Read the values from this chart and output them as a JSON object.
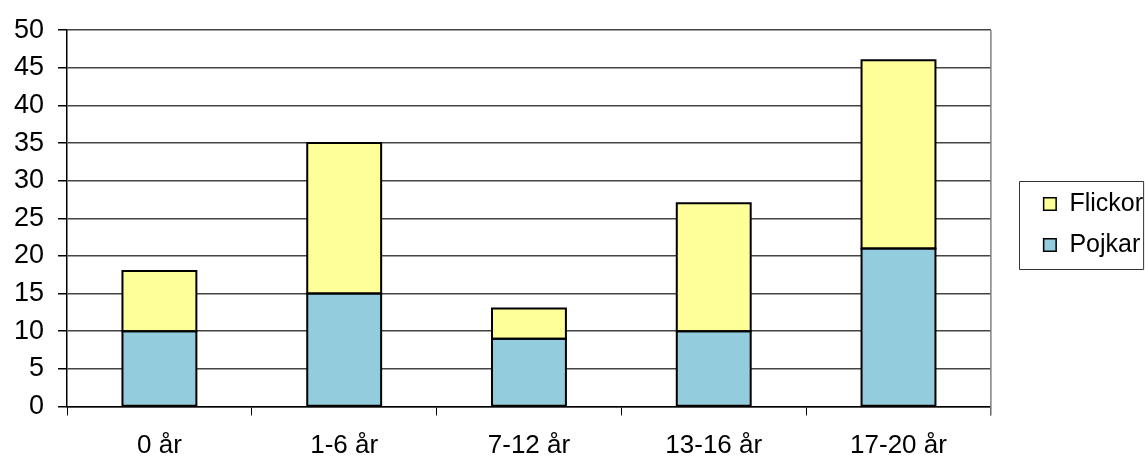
{
  "chart_data": {
    "type": "bar",
    "categories": [
      "0 år",
      "1-6 år",
      "7-12 år",
      "13-16 år",
      "17-20 år"
    ],
    "series": [
      {
        "name": "Pojkar",
        "color": "#93cddd",
        "values": [
          10,
          15,
          9,
          10,
          21
        ]
      },
      {
        "name": "Flickor",
        "color": "#ffff99",
        "values": [
          8,
          20,
          4,
          17,
          25
        ]
      }
    ],
    "stacked": true,
    "ylim": [
      0,
      50
    ],
    "yticks": [
      0,
      5,
      10,
      15,
      20,
      25,
      30,
      35,
      40,
      45,
      50
    ],
    "grid": "y",
    "legend": "right"
  }
}
